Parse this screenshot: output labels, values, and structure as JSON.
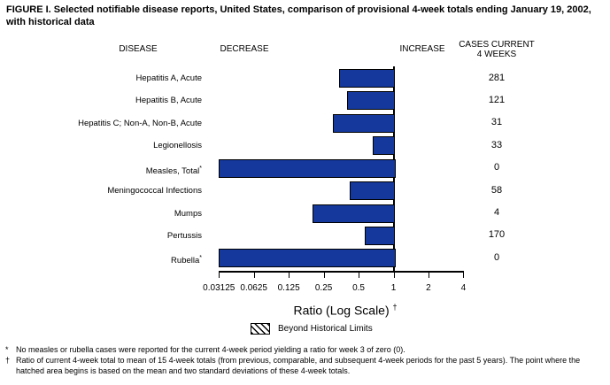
{
  "figure": {
    "title": "FIGURE I. Selected notifiable disease reports, United States, comparison of provisional 4-week totals ending January 19, 2002, with historical data"
  },
  "headers": {
    "disease": "DISEASE",
    "decrease": "DECREASE",
    "increase": "INCREASE",
    "cases_line1": "CASES CURRENT",
    "cases_line2": "4 WEEKS"
  },
  "chart_data": {
    "type": "bar",
    "orientation": "horizontal",
    "x_scale": "log2",
    "xlabel": "Ratio (Log Scale)",
    "xlabel_footnote_marker": "†",
    "xlim": [
      0.03125,
      4
    ],
    "baseline_value": 1,
    "grid": false,
    "x_tick_labels": [
      "0.03125",
      "0.0625",
      "0.125",
      "0.25",
      "0.5",
      "1",
      "2",
      "4"
    ],
    "x_tick_values": [
      0.03125,
      0.0625,
      0.125,
      0.25,
      0.5,
      1,
      2,
      4
    ],
    "bar_color": "#14389C",
    "rows": [
      {
        "disease": "Hepatitis A, Acute",
        "marker": "",
        "ratio": 0.34,
        "cases": "281"
      },
      {
        "disease": "Hepatitis B, Acute",
        "marker": "",
        "ratio": 0.4,
        "cases": "121"
      },
      {
        "disease": "Hepatitis C; Non-A, Non-B, Acute",
        "marker": "",
        "ratio": 0.3,
        "cases": "31"
      },
      {
        "disease": "Legionellosis",
        "marker": "",
        "ratio": 0.66,
        "cases": "33"
      },
      {
        "disease": "Measles, Total",
        "marker": "*",
        "ratio": 0,
        "cases": "0"
      },
      {
        "disease": "Meningococcal Infections",
        "marker": "",
        "ratio": 0.42,
        "cases": "58"
      },
      {
        "disease": "Mumps",
        "marker": "",
        "ratio": 0.2,
        "cases": "4"
      },
      {
        "disease": "Pertussis",
        "marker": "",
        "ratio": 0.56,
        "cases": "170"
      },
      {
        "disease": "Rubella",
        "marker": "*",
        "ratio": 0,
        "cases": "0"
      }
    ],
    "legend": {
      "swatch": "hatched",
      "label": "Beyond Historical Limits"
    }
  },
  "footnotes": [
    {
      "marker": "*",
      "text": "No measles or rubella cases were reported for the current 4-week period yielding a ratio for week 3 of zero (0)."
    },
    {
      "marker": "†",
      "text": "Ratio of current 4-week total to mean of 15 4-week totals (from previous, comparable, and subsequent 4-week periods for the past 5 years). The point where the hatched area begins is based on the mean and two standard deviations of these 4-week totals."
    }
  ]
}
